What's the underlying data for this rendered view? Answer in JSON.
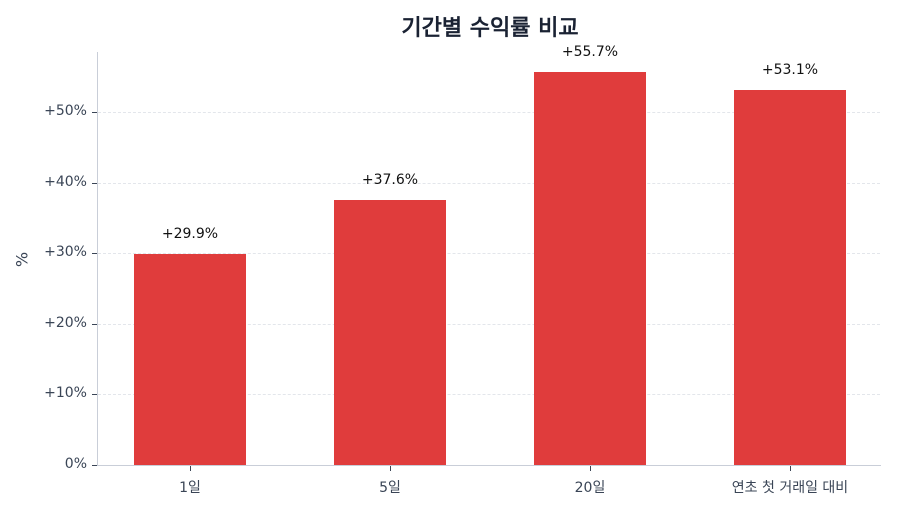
{
  "chart_data": {
    "type": "bar",
    "title": "기간별 수익률 비교",
    "xlabel": "",
    "ylabel": "%",
    "categories": [
      "1일",
      "5일",
      "20일",
      "연초 첫 거래일 대비"
    ],
    "values": [
      29.9,
      37.6,
      55.7,
      53.1
    ],
    "value_labels": [
      "+29.9%",
      "+37.6%",
      "+55.7%",
      "+53.1%"
    ],
    "ylim": [
      0,
      58.5
    ],
    "yticks": [
      0,
      10,
      20,
      30,
      40,
      50
    ],
    "ytick_labels": [
      "0%",
      "+10%",
      "+20%",
      "+30%",
      "+40%",
      "+50%"
    ],
    "grid": "horizontal-dashed",
    "legend": null,
    "bar_color": "#e03c3c"
  }
}
